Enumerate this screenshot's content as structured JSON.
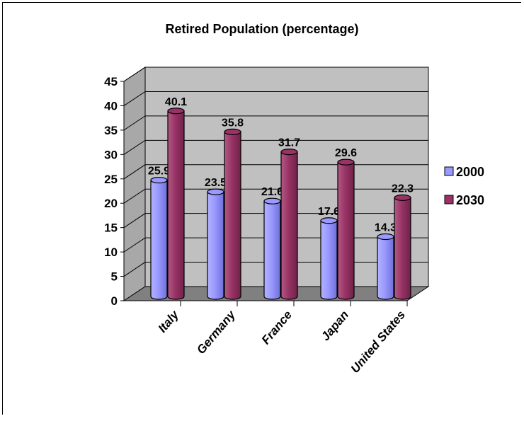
{
  "chart_data": {
    "type": "bar",
    "title": "Retired Population (percentage)",
    "categories": [
      "Italy",
      "Germany",
      "France",
      "Japan",
      "United States"
    ],
    "series": [
      {
        "name": "2000",
        "values": [
          25.9,
          23.5,
          21.6,
          17.6,
          14.3
        ]
      },
      {
        "name": "2030",
        "values": [
          40.1,
          35.8,
          31.7,
          29.6,
          22.3
        ]
      }
    ],
    "ylim": [
      0,
      45
    ],
    "yticks": [
      0,
      5,
      10,
      15,
      20,
      25,
      30,
      35,
      40,
      45
    ],
    "grid": true,
    "legend_position": "right",
    "colors": {
      "series_2000": "#9999ff",
      "series_2030": "#993366",
      "wall": "#c0c0c0",
      "floor": "#808080"
    }
  }
}
